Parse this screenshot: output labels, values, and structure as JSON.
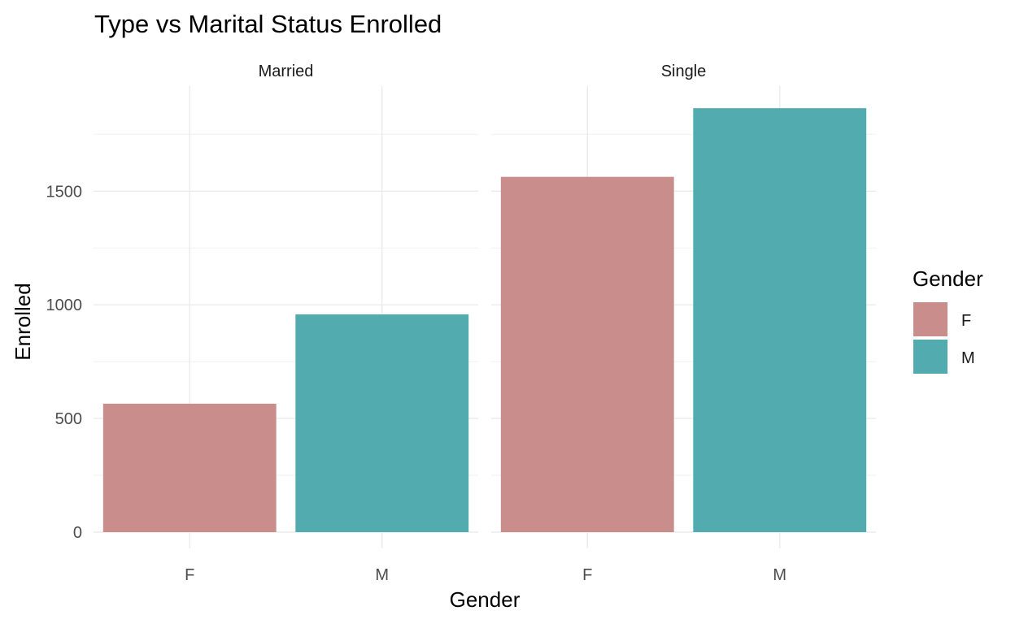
{
  "chart_data": {
    "type": "bar",
    "title": "Type vs Marital Status Enrolled",
    "xlabel": "Gender",
    "ylabel": "Enrolled",
    "ylim": [
      0,
      1950
    ],
    "yticks": [
      0,
      500,
      1000,
      1500
    ],
    "y_tick_labels": [
      "0",
      "500",
      "1000",
      "1500"
    ],
    "grid": true,
    "facets": [
      {
        "label": "Married",
        "categories": [
          "F",
          "M"
        ],
        "values": [
          565,
          958
        ]
      },
      {
        "label": "Single",
        "categories": [
          "F",
          "M"
        ],
        "values": [
          1563,
          1865
        ]
      }
    ],
    "legend": {
      "title": "Gender",
      "position": "right",
      "items": [
        {
          "label": "F",
          "color": "#C98D8B"
        },
        {
          "label": "M",
          "color": "#52ABAF"
        }
      ]
    }
  }
}
